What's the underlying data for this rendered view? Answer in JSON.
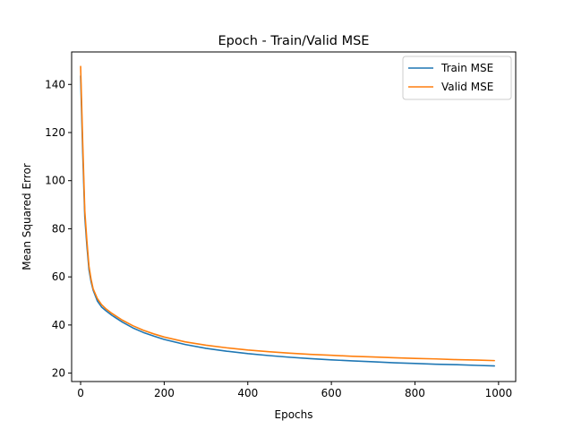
{
  "chart_data": {
    "type": "line",
    "title": "Epoch - Train/Valid MSE",
    "xlabel": "Epochs",
    "ylabel": "Mean Squared Error",
    "xlim": [
      -21.5,
      1041
    ],
    "ylim": [
      16.5,
      153.5
    ],
    "xticks": [
      0,
      200,
      400,
      600,
      800,
      1000
    ],
    "yticks": [
      20,
      40,
      60,
      80,
      100,
      120,
      140
    ],
    "grid": false,
    "legend_position": "top-right",
    "x": [
      0,
      5,
      10,
      15,
      20,
      25,
      30,
      40,
      50,
      60,
      75,
      100,
      125,
      150,
      175,
      200,
      250,
      300,
      350,
      400,
      450,
      500,
      550,
      600,
      650,
      700,
      750,
      800,
      850,
      900,
      950,
      990
    ],
    "series": [
      {
        "name": "Train MSE",
        "color": "#1f77b4",
        "values": [
          143.5,
          112.0,
          85.0,
          73.0,
          63.0,
          58.0,
          54.5,
          50.0,
          47.5,
          46.0,
          44.0,
          41.2,
          38.8,
          36.9,
          35.4,
          34.0,
          31.9,
          30.3,
          29.1,
          28.1,
          27.3,
          26.6,
          26.0,
          25.5,
          25.1,
          24.7,
          24.3,
          24.0,
          23.7,
          23.5,
          23.2,
          23.0
        ]
      },
      {
        "name": "Valid MSE",
        "color": "#ff7f0e",
        "values": [
          147.5,
          116.0,
          87.5,
          75.0,
          64.5,
          59.0,
          55.0,
          51.0,
          48.5,
          46.8,
          44.8,
          42.0,
          39.7,
          37.8,
          36.3,
          35.0,
          33.0,
          31.6,
          30.5,
          29.6,
          28.9,
          28.3,
          27.8,
          27.4,
          27.0,
          26.7,
          26.4,
          26.1,
          25.9,
          25.6,
          25.4,
          25.2
        ]
      }
    ]
  }
}
